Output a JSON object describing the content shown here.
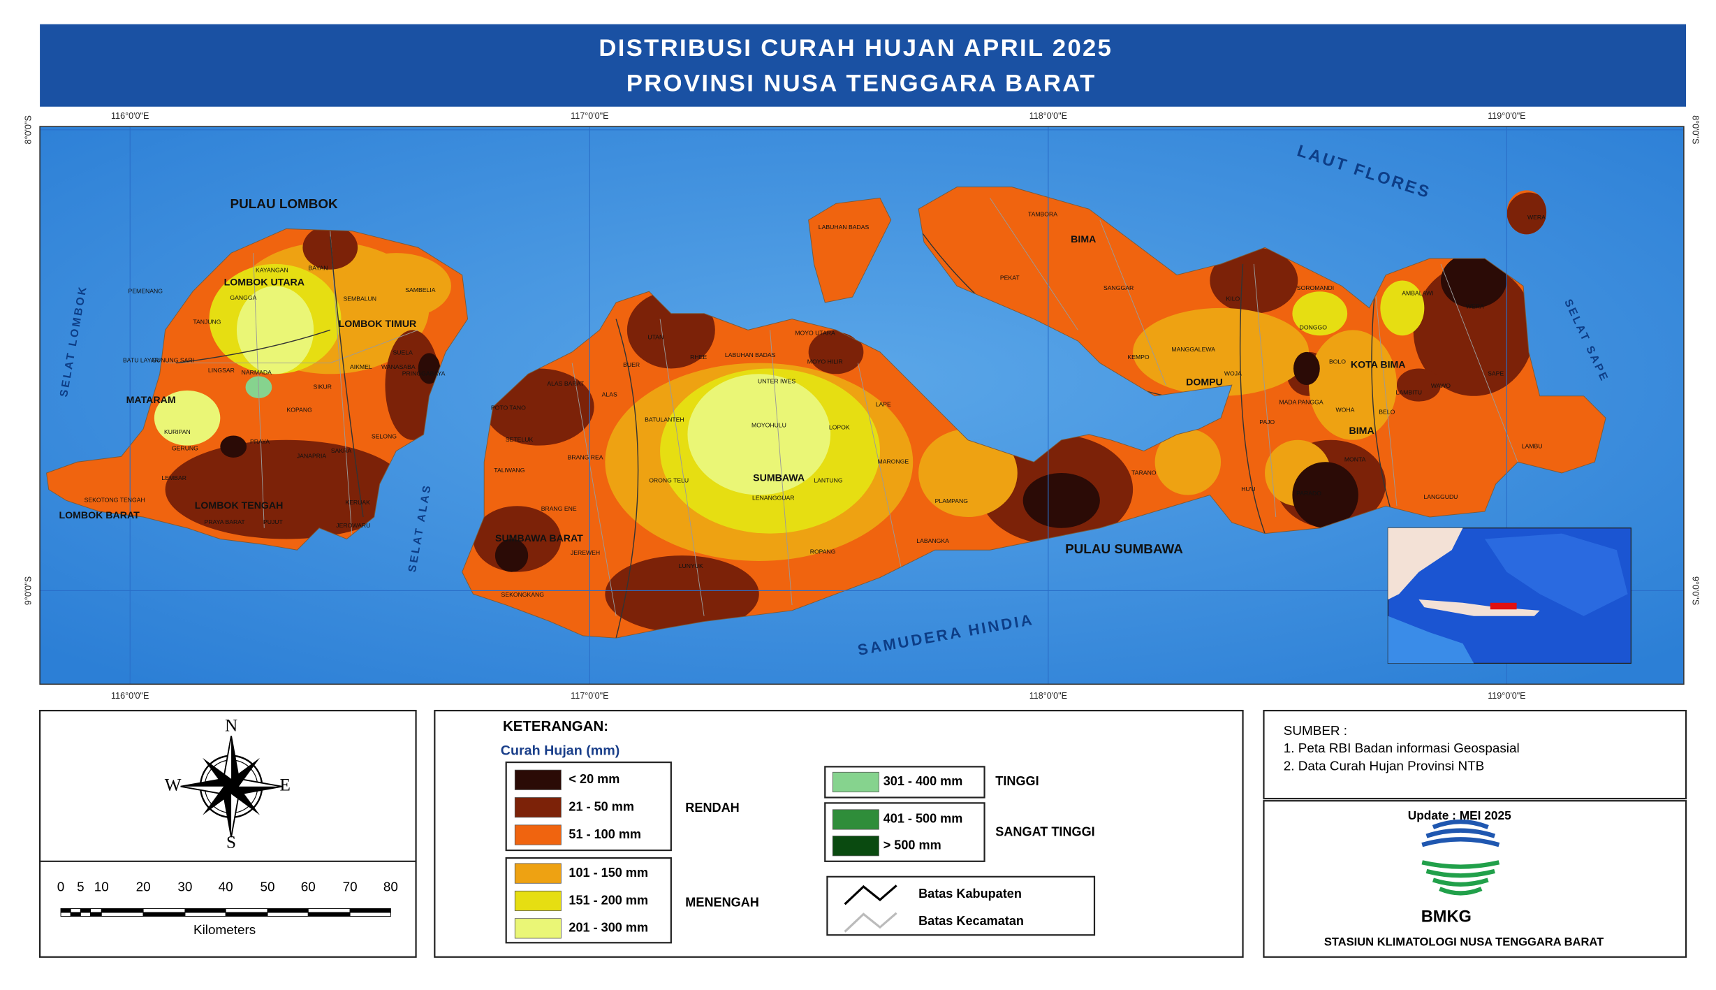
{
  "header": {
    "title_line1": "DISTRIBUSI CURAH HUJAN APRIL 2025",
    "title_line2": "PROVINSI NUSA TENGGARA BARAT"
  },
  "map": {
    "lon_labels": [
      "116°0'0\"E",
      "117°0'0\"E",
      "118°0'0\"E",
      "119°0'0\"E"
    ],
    "lat_labels": [
      "8°0'0\"S",
      "9°0'0\"S"
    ],
    "water_labels": [
      "LAUT FLORES",
      "SAMUDERA HINDIA",
      "SELAT LOMBOK",
      "SELAT ALAS",
      "SELAT SAPE"
    ],
    "places": [
      "PULAU LOMBOK",
      "LOMBOK UTARA",
      "LOMBOK TIMUR",
      "MATARAM",
      "LOMBOK TENGAH",
      "LOMBOK BARAT",
      "SUMBAWA BARAT",
      "SUMBAWA",
      "PULAU SUMBAWA",
      "BIMA",
      "DOMPU",
      "KOTA BIMA",
      "BIMA",
      "TAMBORA",
      "PEKAT",
      "SANGGAR",
      "KILO",
      "MANGGALEWA",
      "KEMPO",
      "WOJA",
      "HU'U",
      "PAJO",
      "TARANO",
      "PLAMPANG",
      "LABANGKA",
      "LAPE",
      "LOPOK",
      "MOYOHULU",
      "LANTUNG",
      "LENANGGUAR",
      "ROPANG",
      "LUNYUK",
      "ORONG TELU",
      "BATULANTEH",
      "ALAS",
      "BUER",
      "UTAN",
      "RHEE",
      "LABUHAN BADAS",
      "UNTER IWES",
      "MOYO UTARA",
      "MOYO HILIR",
      "LABUHAN BADAS",
      "BRANG REA",
      "BRANG ENE",
      "JEREWEH",
      "SEKONGKANG",
      "TALIWANG",
      "SETELUK",
      "POTO TANO",
      "ALAS BARAT",
      "MARONGE",
      "WERA",
      "WERA",
      "AMBALAWI",
      "SAPE",
      "LAMBU",
      "LANGGUDU",
      "MONTA",
      "PARADO",
      "WAWO",
      "LAMBITU",
      "BELO",
      "WOHA",
      "MADA PANGGA",
      "BOLO",
      "DONGGO",
      "SOROMANDI",
      "SAMBELIA",
      "SEMBALUN",
      "SUELA",
      "AIKMEL",
      "WANASABA",
      "PRINGGABAYA",
      "KAYANGAN",
      "BAYAN",
      "GANGGA",
      "TANJUNG",
      "PEMENANG",
      "GUNUNG SARI",
      "BATU LAYAR",
      "LINGSAR",
      "NARMADA",
      "SELONG",
      "JEROWARU",
      "PUJUT",
      "PRAYA BARAT",
      "PRAYA",
      "JANAPRIA",
      "KOPANG",
      "SIKUR",
      "SEKOTONG TENGAH",
      "LEMBAR",
      "GERUNG",
      "KURIPAN",
      "SAKRA",
      "KERUAK"
    ]
  },
  "compass": {
    "n": "N",
    "s": "S",
    "e": "E",
    "w": "W"
  },
  "scale": {
    "ticks": [
      "0",
      "5",
      "10",
      "20",
      "30",
      "40",
      "50",
      "60",
      "70",
      "80"
    ],
    "unit": "Kilometers"
  },
  "legend": {
    "title": "KETERANGAN:",
    "subtitle": "Curah Hujan (mm)",
    "classes": [
      {
        "label": "< 20 mm",
        "color": "#2b0b06"
      },
      {
        "label": "21 - 50 mm",
        "color": "#7c2208"
      },
      {
        "label": "51 - 100 mm",
        "color": "#f0640f"
      },
      {
        "label": "101 - 150 mm",
        "color": "#eea212"
      },
      {
        "label": "151 - 200 mm",
        "color": "#e6de12"
      },
      {
        "label": "201 - 300 mm",
        "color": "#eaf676"
      },
      {
        "label": "301 - 400 mm",
        "color": "#86d38e"
      },
      {
        "label": "401 - 500 mm",
        "color": "#2f8d3a"
      },
      {
        "label": "> 500 mm",
        "color": "#0a4a10"
      }
    ],
    "groups": [
      "RENDAH",
      "MENENGAH",
      "TINGGI",
      "SANGAT TINGGI"
    ],
    "lines": [
      "Batas Kabupaten",
      "Batas Kecamatan"
    ]
  },
  "source": {
    "title": "SUMBER :",
    "items": [
      "1. Peta RBI Badan informasi Geospasial",
      "2. Data Curah Hujan Provinsi NTB"
    ]
  },
  "credit": {
    "update": "Update : MEI 2025",
    "logo": "BMKG",
    "station": "STASIUN KLIMATOLOGI NUSA TENGGARA BARAT"
  }
}
